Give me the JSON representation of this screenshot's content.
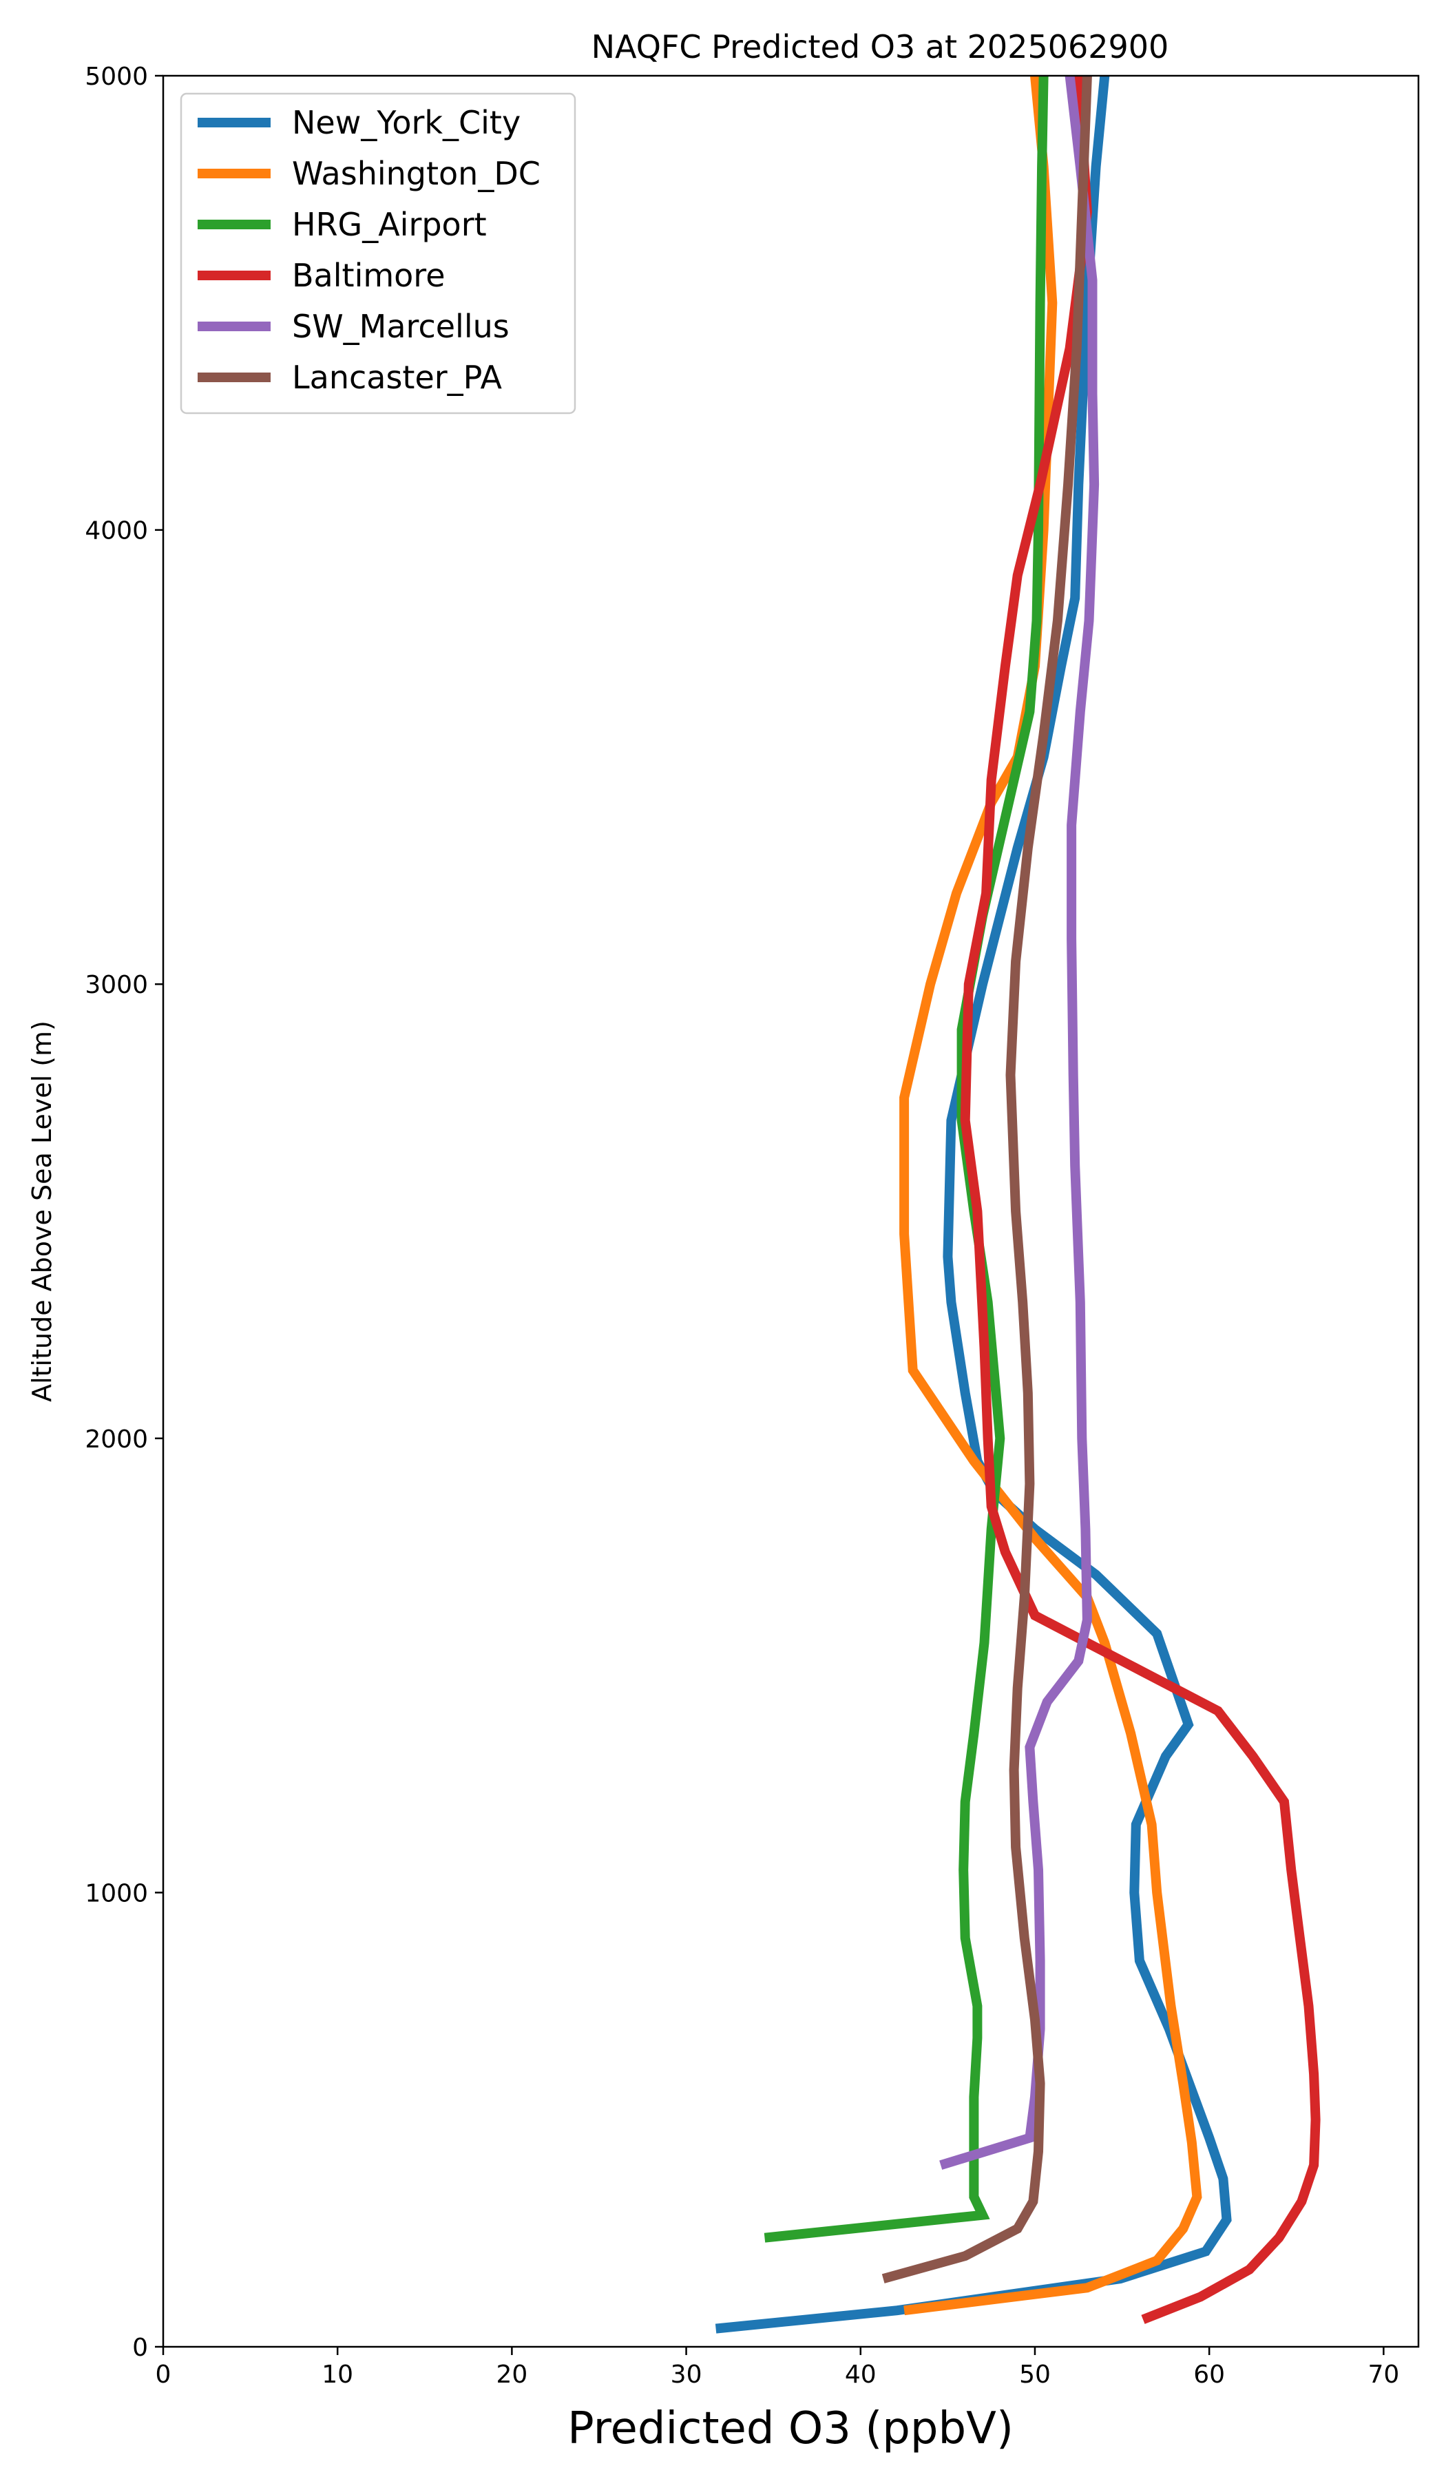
{
  "chart_data": {
    "type": "line",
    "title": "NAQFC Predicted O3 at 2025062900",
    "xlabel": "Predicted O3 (ppbV)",
    "ylabel": "Altitude Above Sea Level (m)",
    "xlim": [
      0,
      72
    ],
    "ylim": [
      0,
      5000
    ],
    "xticks": [
      0,
      10,
      20,
      30,
      40,
      50,
      60,
      70
    ],
    "yticks": [
      0,
      1000,
      2000,
      3000,
      4000,
      5000
    ],
    "grid": false,
    "legend_position": "top-left",
    "series": [
      {
        "name": "New_York_City",
        "color": "#1f77b4",
        "points": [
          [
            31.7,
            40
          ],
          [
            42.1,
            80
          ],
          [
            54.9,
            150
          ],
          [
            59.8,
            210
          ],
          [
            61.0,
            280
          ],
          [
            60.8,
            370
          ],
          [
            60.0,
            460
          ],
          [
            57.7,
            700
          ],
          [
            56.0,
            850
          ],
          [
            55.7,
            1000
          ],
          [
            55.8,
            1150
          ],
          [
            57.5,
            1300
          ],
          [
            58.8,
            1370
          ],
          [
            57.0,
            1570
          ],
          [
            53.5,
            1700
          ],
          [
            50.0,
            1800
          ],
          [
            47.7,
            1880
          ],
          [
            46.7,
            1950
          ],
          [
            46.0,
            2100
          ],
          [
            45.2,
            2300
          ],
          [
            45.0,
            2400
          ],
          [
            45.2,
            2700
          ],
          [
            47.0,
            3000
          ],
          [
            49.0,
            3300
          ],
          [
            50.5,
            3500
          ],
          [
            51.5,
            3700
          ],
          [
            52.3,
            3850
          ],
          [
            52.5,
            4100
          ],
          [
            53.0,
            4500
          ],
          [
            53.5,
            4800
          ],
          [
            54.0,
            5000
          ]
        ]
      },
      {
        "name": "Washington_DC",
        "color": "#ff7f0e",
        "points": [
          [
            42.5,
            80
          ],
          [
            53.0,
            130
          ],
          [
            57.0,
            190
          ],
          [
            58.5,
            260
          ],
          [
            59.3,
            330
          ],
          [
            59.0,
            450
          ],
          [
            58.5,
            580
          ],
          [
            57.8,
            750
          ],
          [
            57.0,
            1000
          ],
          [
            56.7,
            1150
          ],
          [
            55.5,
            1350
          ],
          [
            54.0,
            1550
          ],
          [
            53.0,
            1650
          ],
          [
            50.0,
            1780
          ],
          [
            46.5,
            1950
          ],
          [
            43.0,
            2150
          ],
          [
            42.5,
            2450
          ],
          [
            42.5,
            2750
          ],
          [
            44.0,
            3000
          ],
          [
            45.5,
            3200
          ],
          [
            47.5,
            3400
          ],
          [
            49.0,
            3500
          ],
          [
            50.0,
            3700
          ],
          [
            50.5,
            4000
          ],
          [
            51.0,
            4500
          ],
          [
            50.5,
            4800
          ],
          [
            50.0,
            5000
          ]
        ]
      },
      {
        "name": "HRG_Airport",
        "color": "#2ca02c",
        "points": [
          [
            34.5,
            240
          ],
          [
            39.5,
            260
          ],
          [
            47.0,
            290
          ],
          [
            46.5,
            330
          ],
          [
            46.5,
            360
          ],
          [
            46.5,
            450
          ],
          [
            46.5,
            550
          ],
          [
            46.7,
            680
          ],
          [
            46.7,
            750
          ],
          [
            46.0,
            900
          ],
          [
            45.9,
            1050
          ],
          [
            46.0,
            1200
          ],
          [
            46.5,
            1350
          ],
          [
            47.1,
            1550
          ],
          [
            47.5,
            1800
          ],
          [
            48.0,
            2000
          ],
          [
            47.3,
            2300
          ],
          [
            46.5,
            2500
          ],
          [
            45.8,
            2700
          ],
          [
            45.8,
            2900
          ],
          [
            47.0,
            3150
          ],
          [
            48.5,
            3400
          ],
          [
            49.7,
            3600
          ],
          [
            50.1,
            3800
          ],
          [
            50.2,
            4000
          ],
          [
            50.3,
            4500
          ],
          [
            50.4,
            4800
          ],
          [
            50.5,
            5000
          ]
        ]
      },
      {
        "name": "Baltimore",
        "color": "#d62728",
        "points": [
          [
            56.2,
            60
          ],
          [
            59.5,
            110
          ],
          [
            62.3,
            170
          ],
          [
            64.0,
            240
          ],
          [
            65.3,
            320
          ],
          [
            66.0,
            400
          ],
          [
            66.1,
            500
          ],
          [
            66.0,
            600
          ],
          [
            65.7,
            750
          ],
          [
            65.2,
            900
          ],
          [
            64.7,
            1050
          ],
          [
            64.3,
            1200
          ],
          [
            62.5,
            1300
          ],
          [
            60.5,
            1400
          ],
          [
            54.5,
            1520
          ],
          [
            50.0,
            1610
          ],
          [
            48.3,
            1750
          ],
          [
            47.5,
            1850
          ],
          [
            47.3,
            2000
          ],
          [
            47.1,
            2200
          ],
          [
            46.7,
            2500
          ],
          [
            46.0,
            2700
          ],
          [
            46.2,
            3000
          ],
          [
            47.2,
            3200
          ],
          [
            47.5,
            3450
          ],
          [
            48.3,
            3700
          ],
          [
            49.0,
            3900
          ],
          [
            50.3,
            4100
          ],
          [
            52.0,
            4400
          ],
          [
            53.0,
            4700
          ],
          [
            52.5,
            5000
          ]
        ]
      },
      {
        "name": "SW_Marcellus",
        "color": "#9467bd",
        "points": [
          [
            44.6,
            400
          ],
          [
            49.7,
            460
          ],
          [
            50.0,
            550
          ],
          [
            50.3,
            700
          ],
          [
            50.3,
            850
          ],
          [
            50.2,
            1050
          ],
          [
            49.9,
            1200
          ],
          [
            49.7,
            1320
          ],
          [
            50.7,
            1420
          ],
          [
            52.5,
            1510
          ],
          [
            53.0,
            1600
          ],
          [
            52.9,
            1800
          ],
          [
            52.7,
            2000
          ],
          [
            52.6,
            2300
          ],
          [
            52.3,
            2600
          ],
          [
            52.2,
            2800
          ],
          [
            52.1,
            3100
          ],
          [
            52.1,
            3350
          ],
          [
            52.6,
            3600
          ],
          [
            53.1,
            3800
          ],
          [
            53.4,
            4100
          ],
          [
            53.3,
            4300
          ],
          [
            53.3,
            4550
          ],
          [
            52.6,
            4800
          ],
          [
            52.0,
            5000
          ]
        ]
      },
      {
        "name": "Lancaster_PA",
        "color": "#8c564b",
        "points": [
          [
            41.3,
            150
          ],
          [
            46.0,
            200
          ],
          [
            49.0,
            260
          ],
          [
            49.9,
            320
          ],
          [
            50.2,
            430
          ],
          [
            50.3,
            580
          ],
          [
            50.0,
            720
          ],
          [
            49.4,
            900
          ],
          [
            48.9,
            1100
          ],
          [
            48.8,
            1270
          ],
          [
            49.0,
            1450
          ],
          [
            49.4,
            1650
          ],
          [
            49.7,
            1900
          ],
          [
            49.6,
            2100
          ],
          [
            49.3,
            2300
          ],
          [
            48.9,
            2500
          ],
          [
            48.6,
            2800
          ],
          [
            48.9,
            3050
          ],
          [
            49.6,
            3300
          ],
          [
            50.5,
            3550
          ],
          [
            51.3,
            3800
          ],
          [
            51.9,
            4100
          ],
          [
            52.4,
            4400
          ],
          [
            52.8,
            4800
          ],
          [
            53.0,
            5000
          ]
        ]
      }
    ]
  }
}
